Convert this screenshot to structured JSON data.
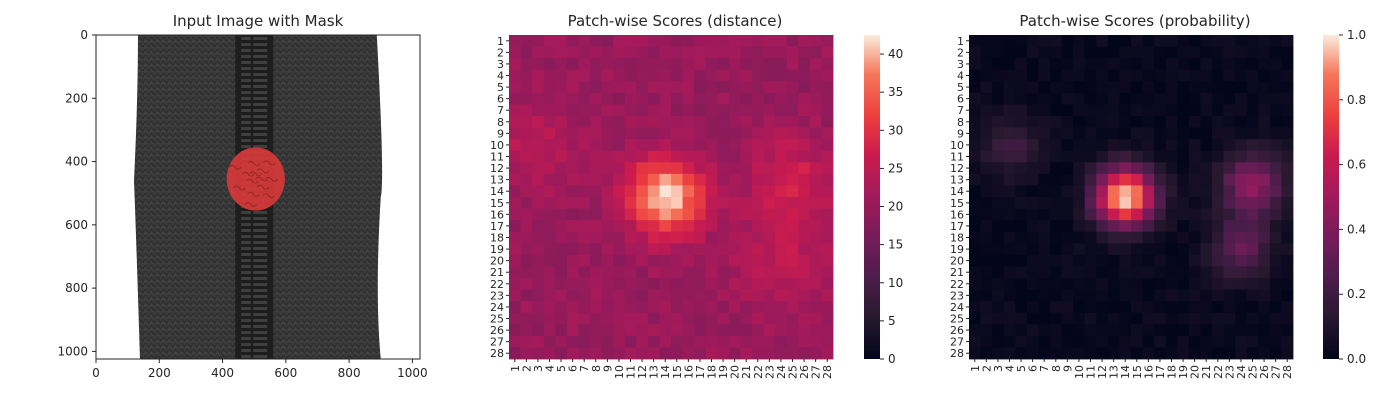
{
  "chart_data": [
    {
      "type": "image",
      "title": "Input Image with Mask",
      "xlim": [
        0,
        1024
      ],
      "ylim": [
        1024,
        0
      ],
      "x_ticks": [
        0,
        200,
        400,
        600,
        800,
        1000
      ],
      "y_ticks": [
        0,
        200,
        400,
        600,
        800,
        1000
      ],
      "content": {
        "fabric_x": [
          120,
          900
        ],
        "zipper_x": [
          440,
          560
        ],
        "mask_center": [
          505,
          455
        ],
        "mask_radius": [
          92,
          100
        ],
        "colors": {
          "fabric": "#3b3b3b",
          "zipper": "#1e1e1e",
          "mask": "#d63a3a",
          "background": "#ffffff"
        }
      }
    },
    {
      "type": "heatmap",
      "title": "Patch-wise Scores (distance)",
      "rows": 28,
      "cols": 28,
      "row_labels": [
        "1",
        "2",
        "3",
        "4",
        "5",
        "6",
        "7",
        "8",
        "9",
        "10",
        "11",
        "12",
        "13",
        "14",
        "15",
        "16",
        "17",
        "18",
        "19",
        "20",
        "21",
        "22",
        "23",
        "24",
        "25",
        "26",
        "27",
        "28"
      ],
      "col_labels": [
        "1",
        "2",
        "3",
        "4",
        "5",
        "6",
        "7",
        "8",
        "9",
        "10",
        "11",
        "12",
        "13",
        "14",
        "15",
        "16",
        "17",
        "18",
        "19",
        "20",
        "21",
        "22",
        "23",
        "24",
        "25",
        "26",
        "27",
        "28"
      ],
      "colorbar": {
        "min": 0,
        "max": 42.5,
        "ticks": [
          0,
          5,
          10,
          15,
          20,
          25,
          30,
          35,
          40
        ]
      },
      "model": {
        "base": 20,
        "hotspots": [
          {
            "row": 14.5,
            "col": 14,
            "amp": 22,
            "sigma": 2.3
          },
          {
            "row": 13,
            "col": 25,
            "amp": 7,
            "sigma": 2.6
          },
          {
            "row": 10,
            "col": 3,
            "amp": 5,
            "sigma": 2.5
          },
          {
            "row": 20,
            "col": 24,
            "amp": 5,
            "sigma": 3
          }
        ]
      }
    },
    {
      "type": "heatmap",
      "title": "Patch-wise Scores (probability)",
      "rows": 28,
      "cols": 28,
      "row_labels": [
        "1",
        "2",
        "3",
        "4",
        "5",
        "6",
        "7",
        "8",
        "9",
        "10",
        "11",
        "12",
        "13",
        "14",
        "15",
        "16",
        "17",
        "18",
        "19",
        "20",
        "21",
        "22",
        "23",
        "24",
        "25",
        "26",
        "27",
        "28"
      ],
      "col_labels": [
        "1",
        "2",
        "3",
        "4",
        "5",
        "6",
        "7",
        "8",
        "9",
        "10",
        "11",
        "12",
        "13",
        "14",
        "15",
        "16",
        "17",
        "18",
        "19",
        "20",
        "21",
        "22",
        "23",
        "24",
        "25",
        "26",
        "27",
        "28"
      ],
      "colorbar": {
        "min": 0.0,
        "max": 1.0,
        "ticks": [
          0.0,
          0.2,
          0.4,
          0.6,
          0.8,
          1.0
        ]
      },
      "model": {
        "base": 0.02,
        "hotspots": [
          {
            "row": 14.5,
            "col": 14,
            "amp": 0.98,
            "sigma": 1.8
          },
          {
            "row": 13.5,
            "col": 25,
            "amp": 0.42,
            "sigma": 2
          },
          {
            "row": 19,
            "col": 24,
            "amp": 0.3,
            "sigma": 1.8
          },
          {
            "row": 10,
            "col": 4,
            "amp": 0.18,
            "sigma": 1.8
          }
        ]
      }
    }
  ]
}
